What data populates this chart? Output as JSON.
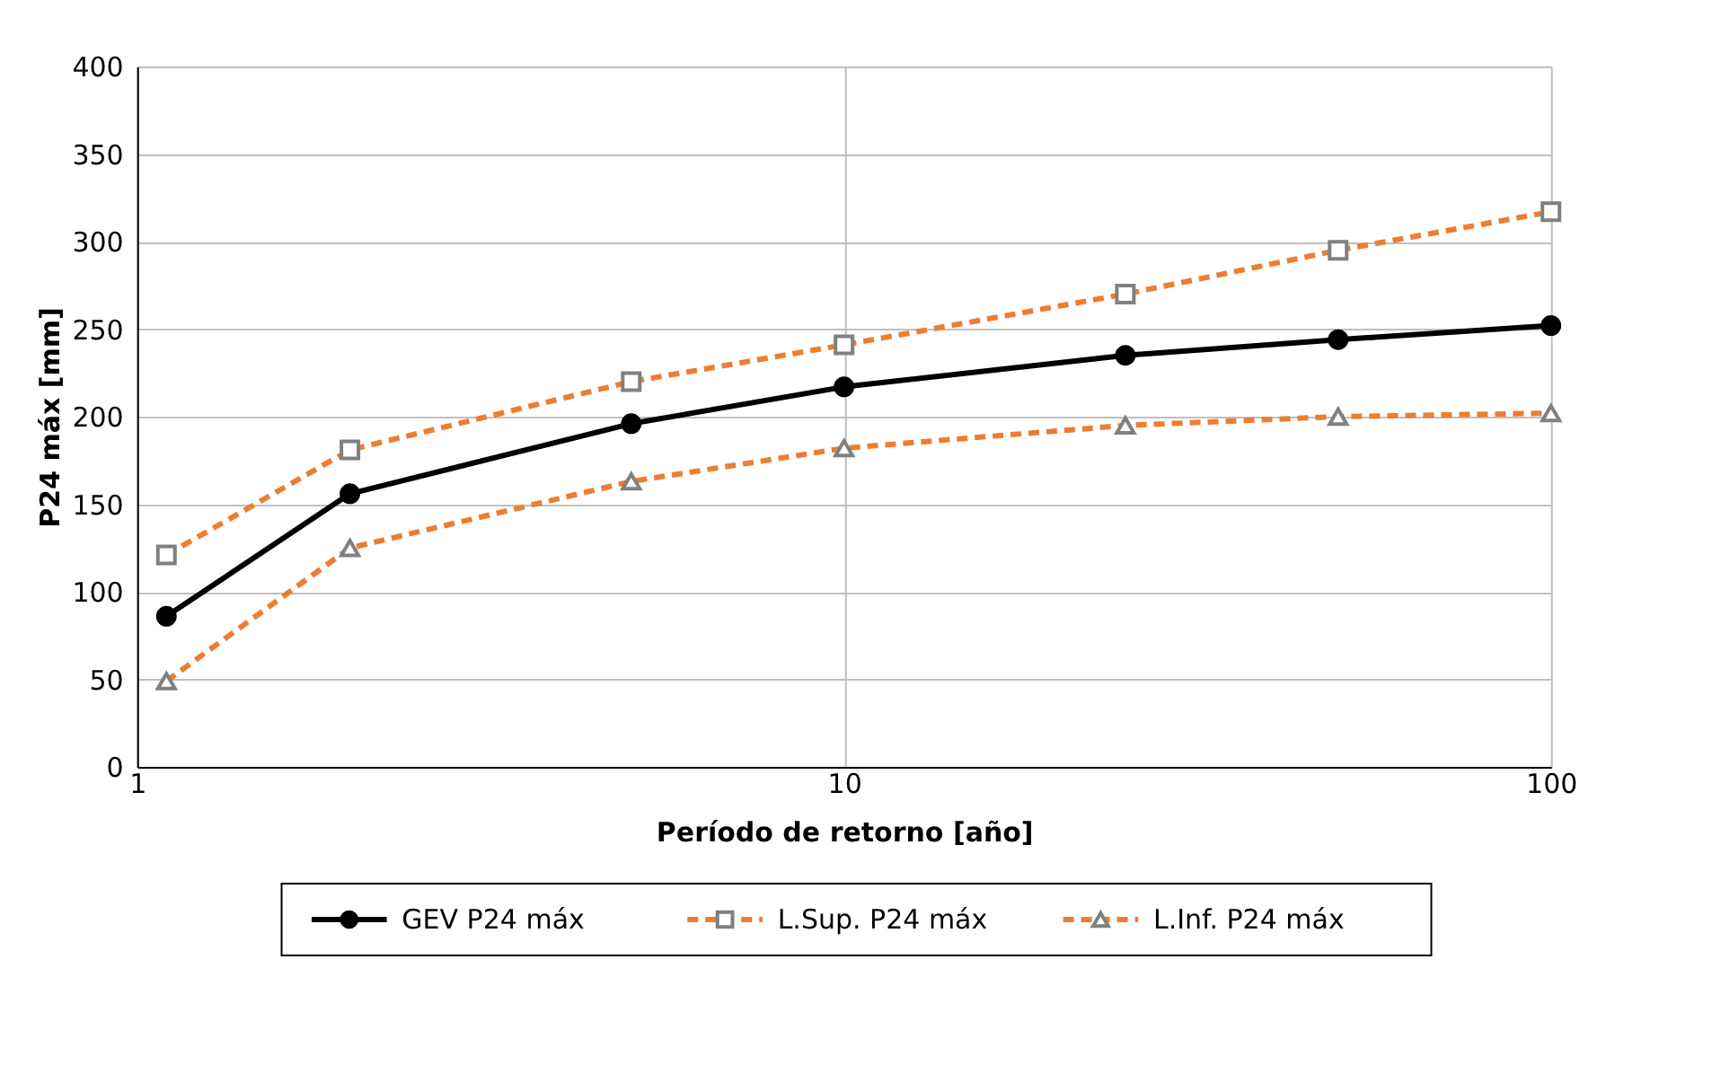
{
  "chart_data": {
    "type": "line",
    "xlabel": "Período de retorno [año]",
    "ylabel": "P24 máx [mm]",
    "x": [
      1.1,
      2,
      5,
      10,
      25,
      50,
      100
    ],
    "series": [
      {
        "name": "GEV P24 máx",
        "color": "#000000",
        "marker": "circle",
        "line_style": "solid",
        "values": [
          86,
          156,
          196,
          217,
          235,
          244,
          252
        ]
      },
      {
        "name": "L.Sup. P24 máx",
        "color": "#ed7d31",
        "marker": "square",
        "line_style": "dashed",
        "values": [
          121,
          181,
          220,
          241,
          270,
          295,
          317
        ]
      },
      {
        "name": "L.Inf. P24 máx",
        "color": "#ed7d31",
        "marker": "triangle",
        "line_style": "dashed",
        "values": [
          49,
          125,
          163,
          182,
          195,
          200,
          202
        ]
      }
    ],
    "log": "x",
    "xlim": [
      1,
      100
    ],
    "xticks": [
      1,
      10,
      100
    ],
    "ylim": [
      0,
      400
    ],
    "yticks": [
      0,
      50,
      100,
      150,
      200,
      250,
      300,
      350,
      400
    ],
    "grid": true,
    "legend": "bottom"
  }
}
